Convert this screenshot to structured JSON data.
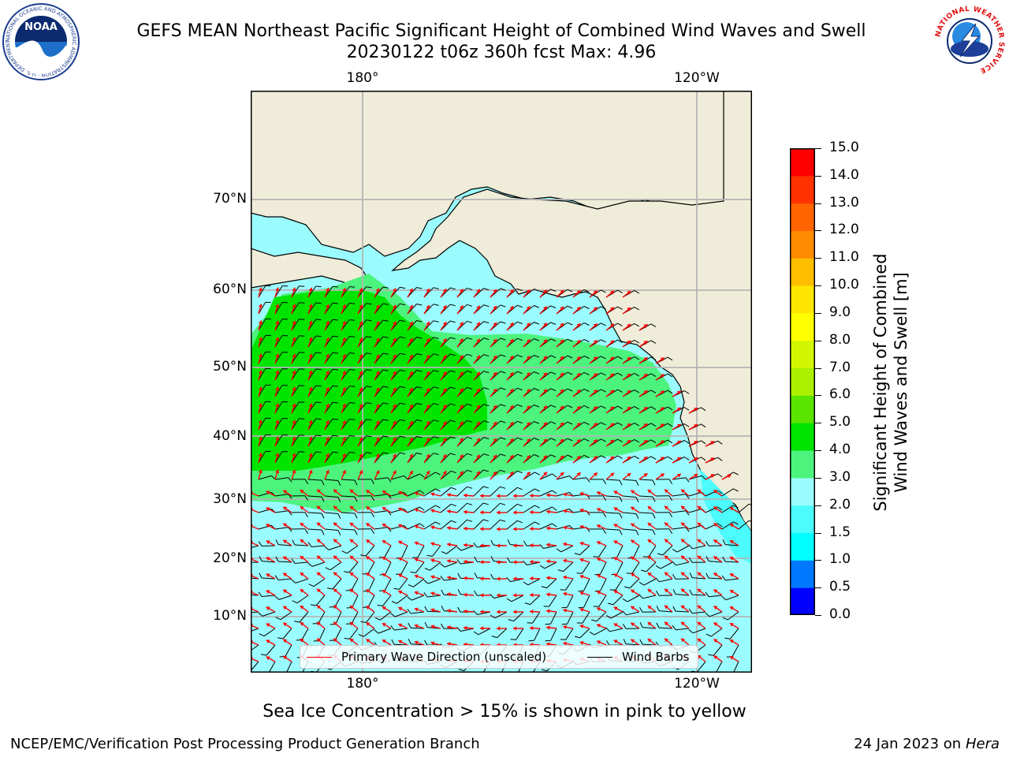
{
  "title": {
    "line1": "GEFS MEAN Northeast Pacific Significant Height of Combined Wind Waves and Swell",
    "line2": "20230122 t06z 360h fcst   Max: 4.96"
  },
  "logos": {
    "noaa": {
      "text": "NOAA",
      "ring_text": "NATIONAL OCEANIC AND ATMOSPHERIC ADMINISTRATION · U.S. DEPARTMENT OF COMMERCE"
    },
    "nws": {
      "ring_text": "NATIONAL WEATHER SERVICE"
    }
  },
  "map": {
    "lon_labels_top": [
      "180°",
      "120°W"
    ],
    "lon_labels_bottom": [
      "180°",
      "120°W"
    ],
    "lat_labels": [
      "70°N",
      "60°N",
      "50°N",
      "40°N",
      "30°N",
      "20°N",
      "10°N"
    ],
    "colors": {
      "land": "#efedd9",
      "ocean_low": "#9bfcff",
      "ocean_3to4": "#4cf47e",
      "ocean_4to5": "#00e400",
      "coast_cyan": "#4cfcfc",
      "grid": "#b4b4b4",
      "wave_arrow": "#ff0000",
      "wind_barb": "#000000"
    }
  },
  "colorbar": {
    "label_line1": "Significant Height of Combined",
    "label_line2": "Wind Waves and Swell [m]",
    "ticks": [
      "15.0",
      "14.0",
      "13.0",
      "12.0",
      "11.0",
      "10.0",
      "9.0",
      "8.0",
      "7.0",
      "6.0",
      "5.0",
      "4.0",
      "3.0",
      "2.0",
      "1.5",
      "1.0",
      "0.5",
      "0.0"
    ],
    "colors_bottom_to_top": [
      "#0000ff",
      "#0078ff",
      "#00ffff",
      "#4cfcfc",
      "#9bfcff",
      "#4cf47e",
      "#00e400",
      "#5ae400",
      "#aaf000",
      "#d2f500",
      "#ffff00",
      "#ffe600",
      "#ffbe00",
      "#ff8c00",
      "#ff6400",
      "#ff3200",
      "#ff0000"
    ]
  },
  "legend": {
    "wave_label": "Primary Wave Direction (unscaled)",
    "wind_label": "Wind Barbs"
  },
  "note": "Sea Ice Concentration > 15% is shown in pink to yellow",
  "footer": {
    "left": "NCEP/EMC/Verification Post Processing Product Generation Branch",
    "right_prefix": "24 Jan 2023 on ",
    "right_host": "Hera"
  }
}
